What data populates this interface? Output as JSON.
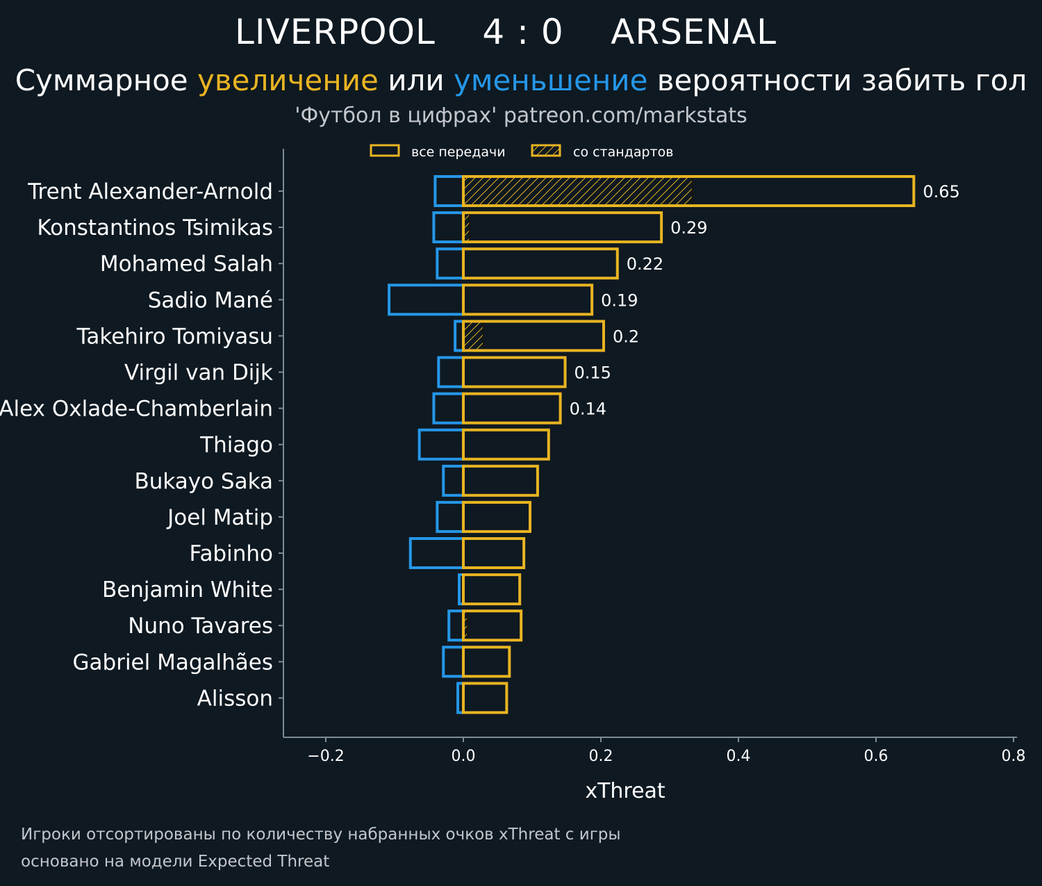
{
  "header": {
    "title": "LIVERPOOL    4 : 0    ARSENAL",
    "subtitle_part1": "Суммарное ",
    "subtitle_increase": "увеличение",
    "subtitle_part2": " или ",
    "subtitle_decrease": "уменьшение",
    "subtitle_part3": " вероятности забить гол",
    "credit": "'Футбол в цифрах' patreon.com/markstats"
  },
  "footnotes": [
    "Игроки отсортированы по количеству набранных очков xThreat с игры",
    "основано на модели Expected Threat"
  ],
  "colors": {
    "background": "#0f1921",
    "increase": "#e8b422",
    "decrease": "#2597e8",
    "axis": "#7d8c96"
  },
  "chart_data": {
    "type": "bar",
    "orientation": "horizontal",
    "xlabel": "xThreat",
    "xlim": [
      -0.26,
      0.8
    ],
    "xticks": [
      -0.2,
      0.0,
      0.2,
      0.4,
      0.6,
      0.8
    ],
    "xtick_labels": [
      "−0.2",
      "0.0",
      "0.2",
      "0.4",
      "0.6",
      "0.8"
    ],
    "legend": {
      "position": "top-center",
      "entries": [
        "все передачи",
        "со стандартов"
      ]
    },
    "categories": [
      "Trent Alexander-Arnold",
      "Konstantinos Tsimikas",
      "Mohamed Salah",
      "Sadio Mané",
      "Takehiro Tomiyasu",
      "Virgil van Dijk",
      "Alex Oxlade-Chamberlain",
      "Thiago",
      "Bukayo Saka",
      "Joel Matip",
      "Fabinho",
      "Benjamin White",
      "Nuno Tavares",
      "Gabriel Magalhães",
      "Alisson"
    ],
    "series": [
      {
        "name": "все передачи",
        "role": "positive",
        "values": [
          0.655,
          0.288,
          0.224,
          0.187,
          0.204,
          0.148,
          0.141,
          0.124,
          0.108,
          0.097,
          0.088,
          0.082,
          0.084,
          0.067,
          0.063
        ]
      },
      {
        "name": "negative",
        "role": "negative",
        "values": [
          -0.041,
          -0.043,
          -0.038,
          -0.108,
          -0.012,
          -0.036,
          -0.043,
          -0.064,
          -0.029,
          -0.038,
          -0.077,
          -0.006,
          -0.021,
          -0.029,
          -0.008
        ]
      },
      {
        "name": "со стандартов",
        "role": "set-pieces",
        "values": [
          0.333,
          0.009,
          0,
          0,
          0.029,
          0,
          0,
          0,
          0,
          0,
          0,
          0,
          0.006,
          0,
          0
        ]
      }
    ],
    "value_labels": [
      "0.65",
      "0.29",
      "0.22",
      "0.19",
      "0.2",
      "0.15",
      "0.14",
      null,
      null,
      null,
      null,
      null,
      null,
      null,
      null
    ]
  }
}
